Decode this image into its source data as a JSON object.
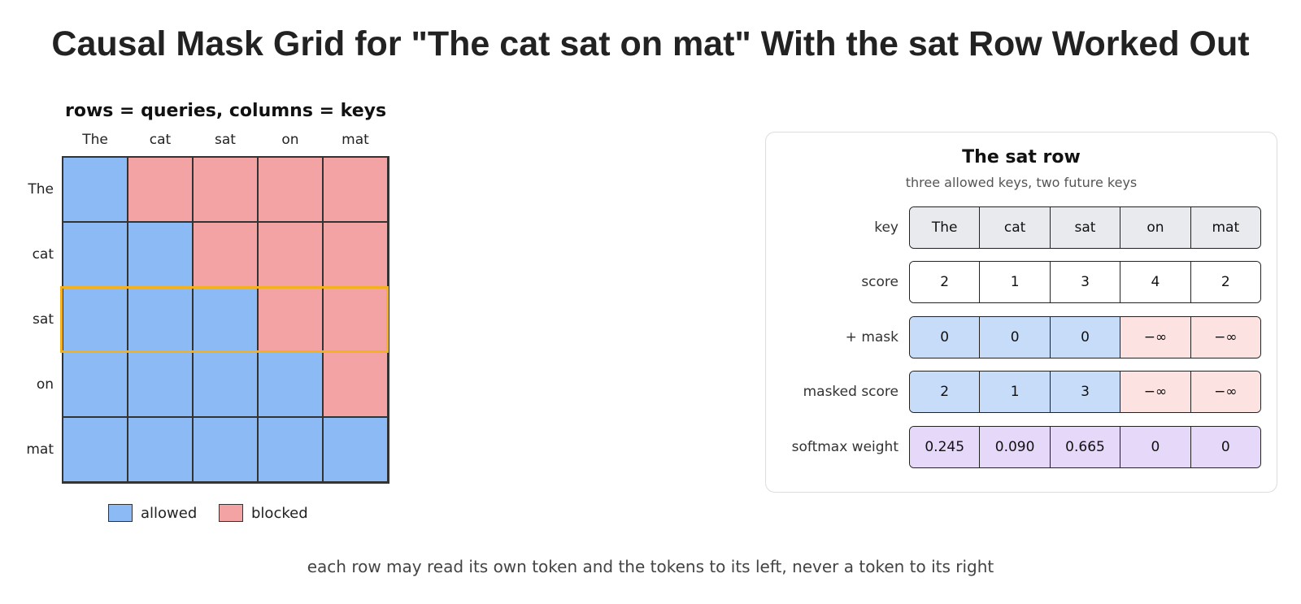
{
  "title": "Causal Mask Grid for \"The cat sat on mat\" With the sat Row Worked Out",
  "grid": {
    "caption": "rows = queries, columns = keys",
    "tokens": [
      "The",
      "cat",
      "sat",
      "on",
      "mat"
    ],
    "highlighted_row": "sat",
    "cells": [
      [
        "allowed",
        "blocked",
        "blocked",
        "blocked",
        "blocked"
      ],
      [
        "allowed",
        "allowed",
        "blocked",
        "blocked",
        "blocked"
      ],
      [
        "allowed",
        "allowed",
        "allowed",
        "blocked",
        "blocked"
      ],
      [
        "allowed",
        "allowed",
        "allowed",
        "allowed",
        "blocked"
      ],
      [
        "allowed",
        "allowed",
        "allowed",
        "allowed",
        "allowed"
      ]
    ],
    "colors": {
      "allowed": "#8bbaf5",
      "blocked": "#f4a3a5",
      "highlight": "#f3b11f"
    }
  },
  "legend": {
    "allowed": "allowed",
    "blocked": "blocked"
  },
  "panel": {
    "title": "The sat row",
    "subtitle": "three allowed keys, two future keys",
    "rows": [
      {
        "label": "key",
        "style": "key",
        "values": [
          "The",
          "cat",
          "sat",
          "on",
          "mat"
        ]
      },
      {
        "label": "score",
        "style": "plain",
        "values": [
          "2",
          "1",
          "3",
          "4",
          "2"
        ]
      },
      {
        "label": "+ mask",
        "style": "mask",
        "values": [
          "0",
          "0",
          "0",
          "−∞",
          "−∞"
        ]
      },
      {
        "label": "masked score",
        "style": "mask",
        "values": [
          "2",
          "1",
          "3",
          "−∞",
          "−∞"
        ]
      },
      {
        "label": "softmax weight",
        "style": "soft",
        "values": [
          "0.245",
          "0.090",
          "0.665",
          "0",
          "0"
        ]
      }
    ]
  },
  "footer": "each row may read its own token and the tokens to its left, never a token to its right"
}
